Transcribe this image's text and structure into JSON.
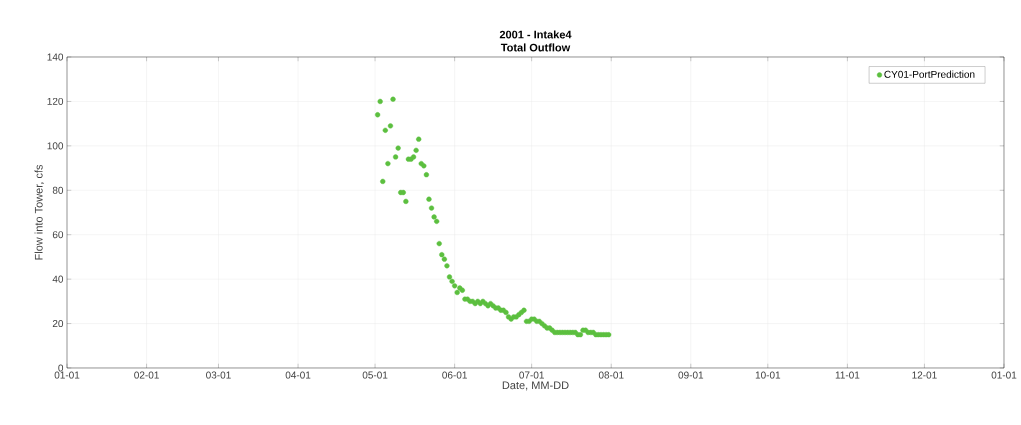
{
  "chart_data": {
    "type": "scatter",
    "title": "2001 - Intake4",
    "subtitle": "Total Outflow",
    "xlabel": "Date, MM-DD",
    "ylabel": "Flow into Tower, cfs",
    "xlim": [
      "2001-01-01",
      "2002-01-01"
    ],
    "xticks": [
      {
        "value": "2001-01-01",
        "label": "01-01"
      },
      {
        "value": "2001-02-01",
        "label": "02-01"
      },
      {
        "value": "2001-03-01",
        "label": "03-01"
      },
      {
        "value": "2001-04-01",
        "label": "04-01"
      },
      {
        "value": "2001-05-01",
        "label": "05-01"
      },
      {
        "value": "2001-06-01",
        "label": "06-01"
      },
      {
        "value": "2001-07-01",
        "label": "07-01"
      },
      {
        "value": "2001-08-01",
        "label": "08-01"
      },
      {
        "value": "2001-09-01",
        "label": "09-01"
      },
      {
        "value": "2001-10-01",
        "label": "10-01"
      },
      {
        "value": "2001-11-01",
        "label": "11-01"
      },
      {
        "value": "2001-12-01",
        "label": "12-01"
      },
      {
        "value": "2002-01-01",
        "label": "01-01"
      }
    ],
    "ylim": [
      0,
      140
    ],
    "yticks": [
      0,
      20,
      40,
      60,
      80,
      100,
      120,
      140
    ],
    "grid": true,
    "legend": "top right",
    "marker": "circle",
    "x": [
      "2001-05-02",
      "2001-05-03",
      "2001-05-04",
      "2001-05-05",
      "2001-05-06",
      "2001-05-07",
      "2001-05-08",
      "2001-05-09",
      "2001-05-10",
      "2001-05-11",
      "2001-05-12",
      "2001-05-13",
      "2001-05-14",
      "2001-05-15",
      "2001-05-16",
      "2001-05-17",
      "2001-05-18",
      "2001-05-19",
      "2001-05-20",
      "2001-05-21",
      "2001-05-22",
      "2001-05-23",
      "2001-05-24",
      "2001-05-25",
      "2001-05-26",
      "2001-05-27",
      "2001-05-28",
      "2001-05-29",
      "2001-05-30",
      "2001-05-31",
      "2001-06-01",
      "2001-06-02",
      "2001-06-03",
      "2001-06-04",
      "2001-06-05",
      "2001-06-06",
      "2001-06-07",
      "2001-06-08",
      "2001-06-09",
      "2001-06-10",
      "2001-06-11",
      "2001-06-12",
      "2001-06-13",
      "2001-06-14",
      "2001-06-15",
      "2001-06-16",
      "2001-06-17",
      "2001-06-18",
      "2001-06-19",
      "2001-06-20",
      "2001-06-21",
      "2001-06-22",
      "2001-06-23",
      "2001-06-24",
      "2001-06-25",
      "2001-06-26",
      "2001-06-27",
      "2001-06-28",
      "2001-06-29",
      "2001-06-30",
      "2001-07-01",
      "2001-07-02",
      "2001-07-03",
      "2001-07-04",
      "2001-07-05",
      "2001-07-06",
      "2001-07-07",
      "2001-07-08",
      "2001-07-09",
      "2001-07-10",
      "2001-07-11",
      "2001-07-12",
      "2001-07-13",
      "2001-07-14",
      "2001-07-15",
      "2001-07-16",
      "2001-07-17",
      "2001-07-18",
      "2001-07-19",
      "2001-07-20",
      "2001-07-21",
      "2001-07-22",
      "2001-07-23",
      "2001-07-24",
      "2001-07-25",
      "2001-07-26",
      "2001-07-27",
      "2001-07-28",
      "2001-07-29",
      "2001-07-30",
      "2001-07-31"
    ],
    "series": [
      {
        "name": "CY01-PortPrediction",
        "color": "#5cbf3f",
        "values": [
          114,
          120,
          84,
          107,
          92,
          109,
          121,
          95,
          99,
          79,
          79,
          75,
          94,
          94,
          95,
          98,
          103,
          92,
          91,
          87,
          76,
          72,
          68,
          66,
          56,
          51,
          49,
          46,
          41,
          39,
          37,
          34,
          36,
          35,
          31,
          31,
          30,
          30,
          29,
          30,
          29,
          30,
          29,
          28,
          29,
          28,
          27,
          27,
          26,
          26,
          25,
          23,
          22,
          23,
          23,
          24,
          25,
          26,
          21,
          21,
          22,
          22,
          21,
          21,
          20,
          19,
          18,
          18,
          17,
          16,
          16,
          16,
          16,
          16,
          16,
          16,
          16,
          16,
          15,
          15,
          17,
          17,
          16,
          16,
          16,
          15,
          15,
          15,
          15,
          15,
          15
        ]
      }
    ]
  }
}
